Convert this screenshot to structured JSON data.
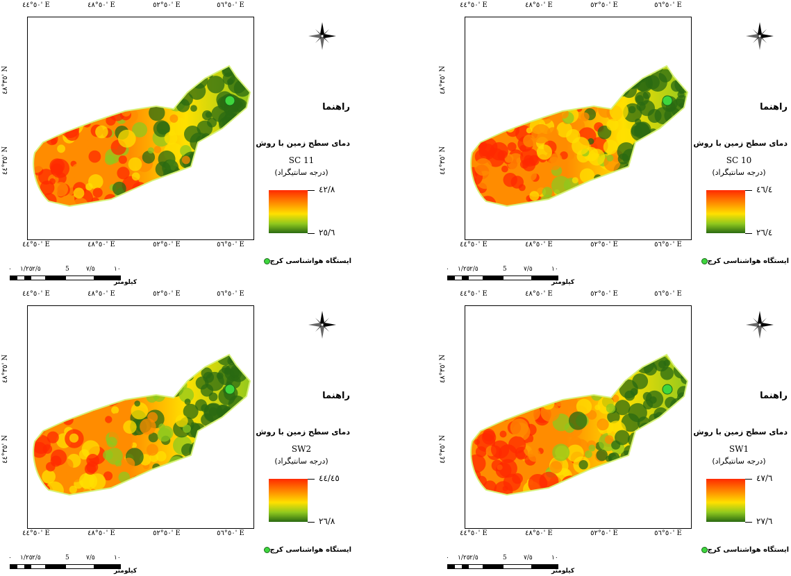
{
  "panels": [
    {
      "id": "sc11",
      "lon_top": [
        "٥٠°٤٤' E",
        "٥٠°٤٨' E",
        "٥٠°٥٢' E",
        "٥٠°٥٦' E"
      ],
      "lon_bottom": [
        "٥٠°٤٤' E",
        "٥٠°٤٨' E",
        "٥٠°٥٢' E",
        "٥٠°٥٦' E"
      ],
      "lat": [
        "٣٥°٤٨' N",
        "٣٥°٤٤' N"
      ],
      "legend_title": "راهنما",
      "legend_method": "دمای سطح زمین با روش",
      "method_code": "SC 11",
      "unit": "(درجه سانتیگراد)",
      "max": "٤٢/٨",
      "min": "٢٥/٦",
      "station": "ایستگاه هواشناسی کرج",
      "scale": [
        "٠",
        "١/٢٥",
        "٢/٥",
        "5",
        "٧/٥",
        "١٠"
      ],
      "scale_unit": "کیلومتر"
    },
    {
      "id": "sc10",
      "lon_top": [
        "٥٠°٤٤' E",
        "٥٠°٤٨' E",
        "٥٠°٥٢' E",
        "٥٠°٥٦' E"
      ],
      "lon_bottom": [
        "٥٠°٤٤' E",
        "٥٠°٤٨' E",
        "٥٠°٥٢' E",
        "٥٠°٥٦' E"
      ],
      "lat": [
        "٣٥°٤٨' N",
        "٣٥°٤٤' N"
      ],
      "legend_title": "راهنما",
      "legend_method": "دمای سطح زمین با روش",
      "method_code": "SC 10",
      "unit": "(درجه سانتیگراد)",
      "max": "٤٦/٤",
      "min": "٢٦/٤",
      "station": "ایستگاه هواشناسی کرج",
      "scale": [
        "٠",
        "١/٢٥",
        "٢/٥",
        "5",
        "٧/٥",
        "١٠"
      ],
      "scale_unit": "کیلومتر"
    },
    {
      "id": "sw2",
      "lon_top": [
        "٥٠°٤٤' E",
        "٥٠°٤٨' E",
        "٥٠°٥٢' E",
        "٥٠°٥٦' E"
      ],
      "lon_bottom": [
        "٥٠°٤٤' E",
        "٥٠°٤٨' E",
        "٥٠°٥٢' E",
        "٥٠°٥٦' E"
      ],
      "lat": [
        "٣٥°٤٨' N",
        "٣٥°٤٤' N"
      ],
      "legend_title": "راهنما",
      "legend_method": "دمای سطح زمین با روش",
      "method_code": "SW2",
      "unit": "(درجه سانتیگراد)",
      "max": "٤٤/٤٥",
      "min": "٢٦/٨",
      "station": "ایستگاه هواشناسی کرج",
      "scale": [
        "٠",
        "١/٢٥",
        "٢/٥",
        "5",
        "٧/٥",
        "١٠"
      ],
      "scale_unit": "کیلومتر"
    },
    {
      "id": "sw1",
      "lon_top": [
        "٥٠°٤٤' E",
        "٥٠°٤٨' E",
        "٥٠°٥٢' E",
        "٥٠°٥٦' E"
      ],
      "lon_bottom": [
        "٥٠°٤٤' E",
        "٥٠°٤٨' E",
        "٥٠°٥٢' E",
        "٥٠°٥٦' E"
      ],
      "lat": [
        "٣٥°٤٨' N",
        "٣٥°٤٤' N"
      ],
      "legend_title": "راهنما",
      "legend_method": "دمای سطح زمین با روش",
      "method_code": "SW1",
      "unit": "(درجه سانتیگراد)",
      "max": "٤٧/٦",
      "min": "٢٧/٦",
      "station": "ایستگاه هواشناسی کرج",
      "scale": [
        "٠",
        "١/٢٥",
        "٢/٥",
        "5",
        "٧/٥",
        "١٠"
      ],
      "scale_unit": "کیلومتر"
    }
  ],
  "colors": {
    "hot": "#ff2a00",
    "warm": "#ff8c00",
    "mid": "#ffe000",
    "cool": "#8fc81e",
    "cold": "#2a6a12",
    "station": "#3ed63e"
  }
}
